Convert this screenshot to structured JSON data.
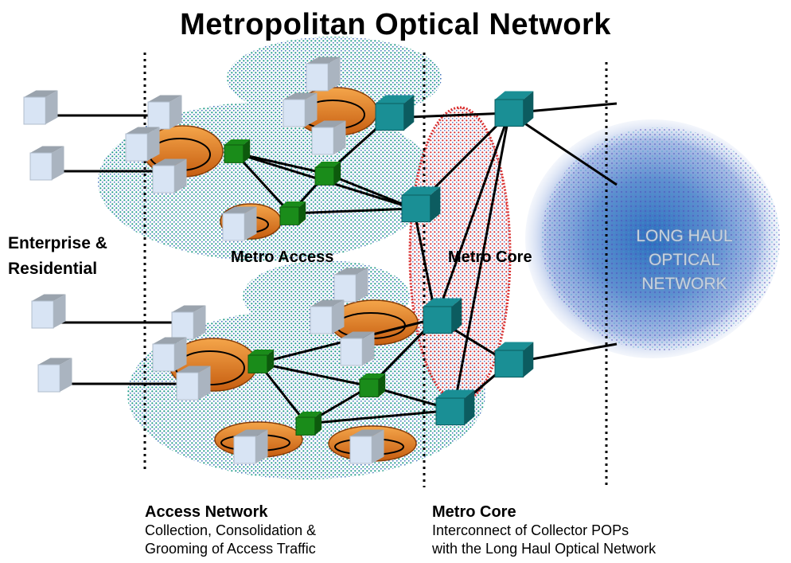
{
  "diagram": {
    "title": "Metropolitan Optical Network",
    "side_label": [
      "Enterprise &",
      "Residential"
    ],
    "regions": {
      "metro_access": "Metro Access",
      "metro_core": "Metro Core"
    },
    "long_haul": [
      "LONG HAUL",
      "OPTICAL",
      "NETWORK"
    ],
    "captions": {
      "access": {
        "heading": "Access Network",
        "lines": [
          "Collection, Consolidation &",
          "Grooming of Access Traffic"
        ]
      },
      "core": {
        "heading": "Metro Core",
        "lines": [
          "Interconnect of Collector POPs",
          "with the Long Haul Optical Network"
        ]
      }
    },
    "colors": {
      "access_cloud": "#1f9b88",
      "core_cloud": "#d93030",
      "long_haul_cloud": "#3b6fc2",
      "access_switch": "#1a8c1a",
      "core_switch": "#1a8f95",
      "ring": "#e07a20",
      "endpoint": "#d8e4f4"
    }
  }
}
